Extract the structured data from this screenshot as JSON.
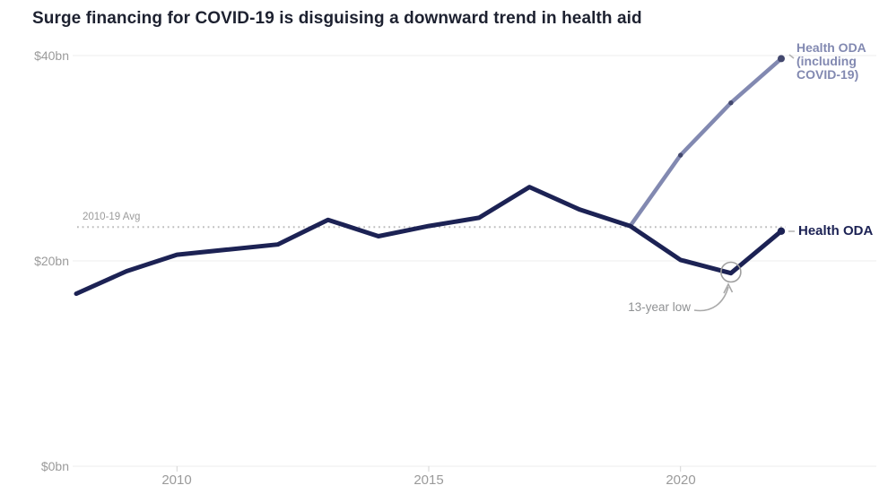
{
  "title": "Surge financing for COVID-19 is disguising a downward trend in health aid",
  "axes": {
    "y_ticks": [
      {
        "label": "$0bn",
        "value": 0
      },
      {
        "label": "$20bn",
        "value": 20
      },
      {
        "label": "$40bn",
        "value": 40
      }
    ],
    "x_ticks": [
      {
        "label": "2010",
        "year": 2010
      },
      {
        "label": "2015",
        "year": 2015
      },
      {
        "label": "2020",
        "year": 2020
      }
    ]
  },
  "avg_line": {
    "label": "2010-19 Avg",
    "value": 23.3
  },
  "annotation": {
    "label": "13-year low",
    "year": 2021,
    "value": 18.8
  },
  "legend": {
    "covid_lines": [
      "Health ODA",
      "(including",
      "COVID-19)"
    ],
    "oda_label": "Health ODA"
  },
  "colors": {
    "navy": "#1c2254",
    "purple": "#8289b1",
    "purple_dot": "#43486e",
    "grid": "#ececec",
    "tick": "#d4d4d4",
    "avg_dots": "#bdbdbd",
    "annotation_gray": "#a9a9a9",
    "legend_dash": "#b3b3b3"
  },
  "chart_data": {
    "type": "line",
    "title": "Surge financing for COVID-19 is disguising a downward trend in health aid",
    "unit": "US$ billions (ODA)",
    "ylim": [
      0,
      40
    ],
    "y_tick_labels": [
      "$0bn",
      "$20bn",
      "$40bn"
    ],
    "x_tick_labels": [
      "2010",
      "2015",
      "2020"
    ],
    "x": [
      2008,
      2009,
      2010,
      2011,
      2012,
      2013,
      2014,
      2015,
      2016,
      2017,
      2018,
      2019,
      2020,
      2021,
      2022
    ],
    "series": [
      {
        "name": "Health ODA",
        "start_year": 2008,
        "values": [
          16.8,
          19.0,
          20.6,
          21.1,
          21.6,
          24.0,
          22.4,
          23.4,
          24.2,
          27.2,
          25.0,
          23.4,
          20.1,
          18.8,
          22.9
        ]
      },
      {
        "name": "Health ODA (including COVID-19)",
        "start_year": 2019,
        "values": [
          23.4,
          30.3,
          35.4,
          39.7
        ]
      }
    ],
    "reference_line": {
      "label": "2010-19 Avg",
      "value": 23.3,
      "style": "dotted"
    },
    "annotations": [
      {
        "label": "13-year low",
        "year": 2021,
        "value": 18.8,
        "marker": "circle"
      }
    ],
    "legend_position": "right-edge-line-labels",
    "grid": "horizontal-only"
  }
}
